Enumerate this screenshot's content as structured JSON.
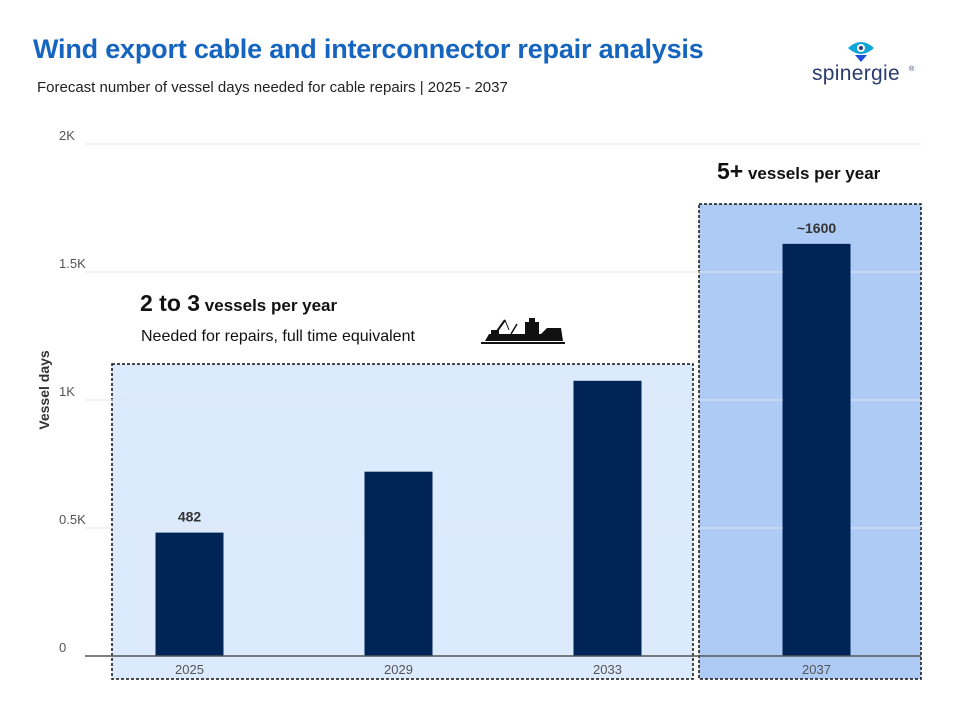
{
  "header": {
    "title": "Wind export cable and interconnector repair analysis",
    "subtitle": "Forecast number of vessel days needed for cable repairs | 2025 - 2037",
    "logo_text": "spinergie",
    "logo_mark": "®"
  },
  "annotations": {
    "group1": {
      "number": "2 to 3",
      "text": " vessels per year",
      "sub": "Needed for repairs,  full time equivalent",
      "icon": "vessel-icon"
    },
    "group2": {
      "number": "5+",
      "text": " vessels per year"
    }
  },
  "colors": {
    "bar": "#002456",
    "group1_fill": "#dbeafc",
    "group2_fill": "#aecbf5",
    "title": "#1565c0"
  },
  "chart_data": {
    "type": "bar",
    "categories": [
      "2025",
      "2029",
      "2033",
      "2037"
    ],
    "values": [
      482,
      720,
      1075,
      1610
    ],
    "data_labels": [
      "482",
      "",
      "",
      "~1600"
    ],
    "ylabel": "Vessel days",
    "ylim": [
      0,
      2000
    ],
    "yticks": [
      0,
      500,
      1000,
      1500,
      2000
    ],
    "ytick_labels": [
      "0",
      "0.5K",
      "1K",
      "1.5K",
      "2K"
    ],
    "grid": true,
    "legend": "none"
  }
}
